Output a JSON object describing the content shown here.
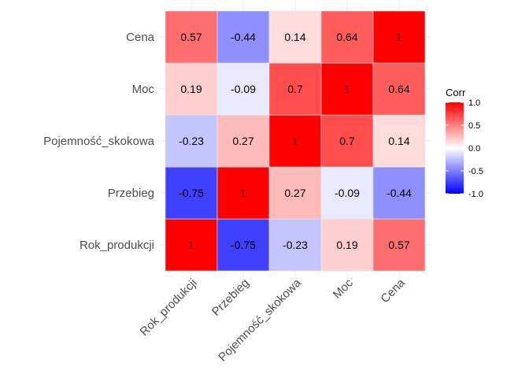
{
  "chart_data": {
    "type": "heatmap",
    "x_categories": [
      "Rok_produkcji",
      "Przebieg",
      "Pojemność_skokowa",
      "Moc",
      "Cena"
    ],
    "y_categories": [
      "Rok_produkcji",
      "Przebieg",
      "Pojemność_skokowa",
      "Moc",
      "Cena"
    ],
    "matrix": [
      [
        1,
        -0.75,
        -0.23,
        0.19,
        0.57
      ],
      [
        -0.75,
        1,
        0.27,
        -0.09,
        -0.44
      ],
      [
        -0.23,
        0.27,
        1,
        0.7,
        0.14
      ],
      [
        0.19,
        -0.09,
        0.7,
        1,
        0.64
      ],
      [
        0.57,
        -0.44,
        0.14,
        0.64,
        1
      ]
    ],
    "value_range": [
      -1,
      1
    ],
    "color_low": "#0000ff",
    "color_mid": "#ffffff",
    "color_high": "#ff0000",
    "legend": {
      "title": "Corr",
      "position": "right",
      "ticks": [
        "1.0",
        "0.5",
        "0.0",
        "-0.5",
        "-1.0"
      ],
      "tick_values": [
        1,
        0.5,
        0,
        -0.5,
        -1
      ]
    },
    "grid": true
  }
}
